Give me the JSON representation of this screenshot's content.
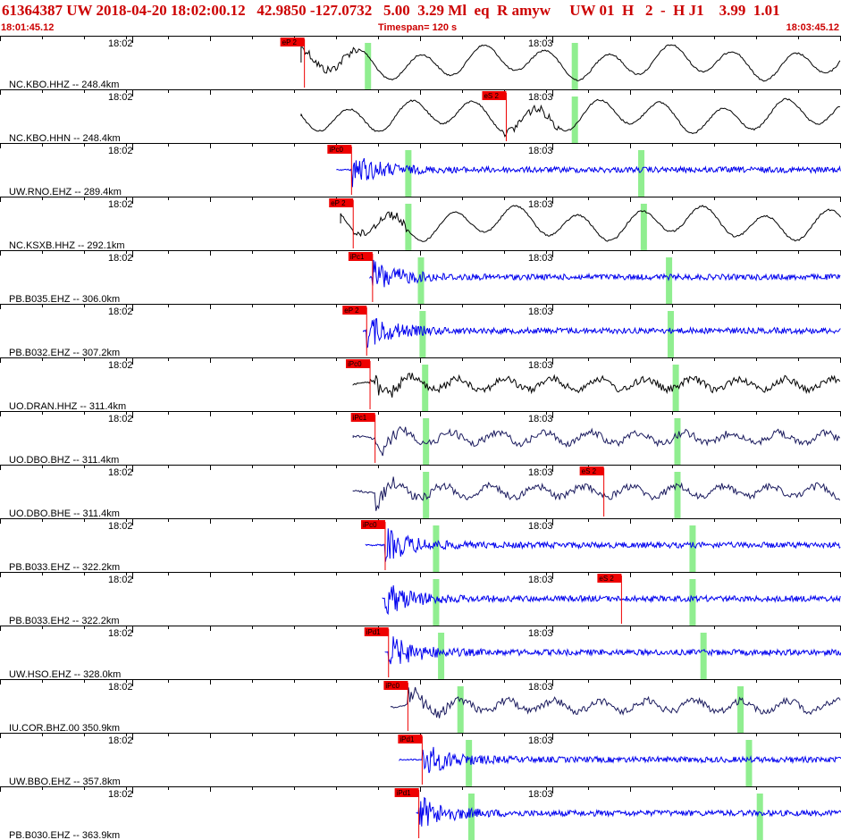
{
  "header": {
    "event_line": "61364387 UW 2018-04-20 18:02:00.12   42.9850 -127.0732   5.00  3.29 Ml  eq  R amyw     UW 01  H   2  -  H J1    3.99  1.01",
    "start_time": "18:01:45.12",
    "timespan": "Timespan= 120 s",
    "end_time": "18:03:45.12"
  },
  "colors": {
    "pick_red": "#ee0000",
    "theoretical_green": "#90ee90",
    "trace_black": "#000000",
    "trace_blue": "#0000ee",
    "trace_navy": "#1a1a5e",
    "label_red": "#cc0000"
  },
  "tick_labels": {
    "first": "18:02",
    "second": "18:03"
  },
  "traces": [
    {
      "label": "NC.KBO.HHZ -- 248.4km",
      "color": "black",
      "start": 0.358,
      "onset": 0.362,
      "style": "lowfreq",
      "pick": "eP 2",
      "pick_t": 0.362,
      "green": [
        0.437,
        0.683
      ]
    },
    {
      "label": "NC.KBO.HHN -- 248.4km",
      "color": "black",
      "start": 0.358,
      "onset": 0.6,
      "style": "lowfreq",
      "pick": "eS 2",
      "pick_t": 0.602,
      "green": [
        0.683
      ]
    },
    {
      "label": "UW.RNO.EHZ -- 289.4km",
      "color": "blue",
      "start": 0.4,
      "onset": 0.418,
      "style": "hf",
      "pick": "iPc0",
      "pick_t": 0.418,
      "green": [
        0.485,
        0.762
      ]
    },
    {
      "label": "NC.KSXB.HHZ -- 292.1km",
      "color": "black",
      "start": 0.405,
      "onset": 0.42,
      "style": "lowfreq",
      "pick": "eP 2",
      "pick_t": 0.42,
      "green": [
        0.485,
        0.765
      ]
    },
    {
      "label": "PB.B035.EHZ -- 306.0km",
      "color": "blue",
      "start": 0.44,
      "onset": 0.443,
      "style": "hf",
      "pick": "iPc1",
      "pick_t": 0.443,
      "green": [
        0.5,
        0.795
      ]
    },
    {
      "label": "PB.B032.EHZ -- 307.2km",
      "color": "blue",
      "start": 0.432,
      "onset": 0.436,
      "style": "hf",
      "pick": "eP 2",
      "pick_t": 0.436,
      "green": [
        0.502,
        0.797
      ]
    },
    {
      "label": "UO.DRAN.HHZ -- 311.4km",
      "color": "black",
      "start": 0.42,
      "onset": 0.44,
      "style": "mixed",
      "pick": "iPc0",
      "pick_t": 0.44,
      "green": [
        0.505,
        0.803
      ]
    },
    {
      "label": "UO.DBO.BHZ -- 311.4km",
      "color": "navy",
      "start": 0.42,
      "onset": 0.446,
      "style": "mixed",
      "pick": "iPc1",
      "pick_t": 0.446,
      "green": [
        0.506,
        0.805
      ]
    },
    {
      "label": "UO.DBO.BHE -- 311.4km",
      "color": "navy",
      "start": 0.42,
      "onset": 0.446,
      "style": "mixed",
      "pick": "eS 2",
      "pick_t": 0.718,
      "green": [
        0.506,
        0.805
      ]
    },
    {
      "label": "PB.B033.EHZ -- 322.2km",
      "color": "blue",
      "start": 0.435,
      "onset": 0.458,
      "style": "hf",
      "pick": "iPc0",
      "pick_t": 0.458,
      "green": [
        0.518,
        0.823
      ]
    },
    {
      "label": "PB.B033.EH2 -- 322.2km",
      "color": "blue",
      "start": 0.455,
      "onset": 0.458,
      "style": "hf",
      "pick": "eS 2",
      "pick_t": 0.739,
      "green": [
        0.518,
        0.823
      ]
    },
    {
      "label": "UW.HSO.EHZ -- 328.0km",
      "color": "blue",
      "start": 0.458,
      "onset": 0.462,
      "style": "hf",
      "pick": "iPd1",
      "pick_t": 0.462,
      "green": [
        0.524,
        0.836
      ]
    },
    {
      "label": "IU.COR.BHZ.00 350.9km",
      "color": "navy",
      "start": 0.465,
      "onset": 0.485,
      "style": "mixed",
      "pick": "iPc0",
      "pick_t": 0.485,
      "green": [
        0.547,
        0.88
      ]
    },
    {
      "label": "UW.BBO.EHZ -- 357.8km",
      "color": "blue",
      "start": 0.475,
      "onset": 0.502,
      "style": "hf",
      "pick": "iPd1",
      "pick_t": 0.502,
      "green": [
        0.557,
        0.89
      ]
    },
    {
      "label": "PB.B030.EHZ -- 363.9km",
      "color": "blue",
      "start": 0.495,
      "onset": 0.498,
      "style": "hf",
      "pick": "iPd1",
      "pick_t": 0.498,
      "green": [
        0.56,
        0.903
      ]
    }
  ]
}
